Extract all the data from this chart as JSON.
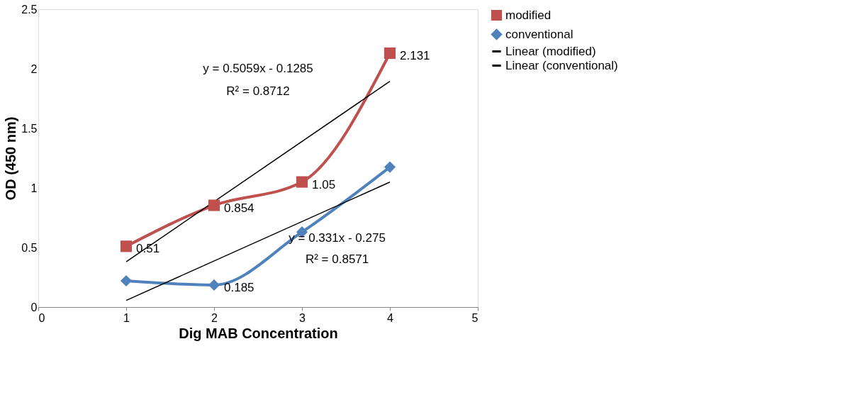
{
  "chart_data": {
    "type": "line",
    "xlabel": "Dig MAB Concentration",
    "ylabel": "OD (450 nm)",
    "xlim": [
      0,
      5
    ],
    "xticks": [
      0,
      1,
      2,
      3,
      4,
      5
    ],
    "ylim": [
      0,
      2.5
    ],
    "yticks": [
      0,
      0.5,
      1,
      1.5,
      2,
      2.5
    ],
    "grid": false,
    "legend": "right",
    "series": [
      {
        "name": "modified",
        "color": "#c0504d",
        "marker": "square",
        "x": [
          1,
          2,
          3,
          4
        ],
        "values": [
          0.51,
          0.854,
          1.05,
          2.131
        ],
        "value_labels": [
          "0.51",
          "0.854",
          "1.05",
          "2.131"
        ]
      },
      {
        "name": "conventional",
        "color": "#4f81bd",
        "marker": "diamond",
        "x": [
          1,
          2,
          3,
          4
        ],
        "values": [
          0.22,
          0.185,
          0.63,
          1.175
        ],
        "value_labels": [
          null,
          "0.185",
          null,
          null
        ]
      },
      {
        "name": "Linear (modified)",
        "color": "#000000",
        "marker": "none",
        "x": [
          1,
          4
        ],
        "values": [
          0.38,
          1.895
        ]
      },
      {
        "name": "Linear (conventional)",
        "color": "#000000",
        "marker": "none",
        "x": [
          1,
          4
        ],
        "values": [
          0.056,
          1.049
        ]
      }
    ],
    "annotations": [
      "y = 0.5059x - 0.1285",
      "R² = 0.8712",
      "y = 0.331x - 0.275",
      "R² = 0.8571"
    ]
  }
}
